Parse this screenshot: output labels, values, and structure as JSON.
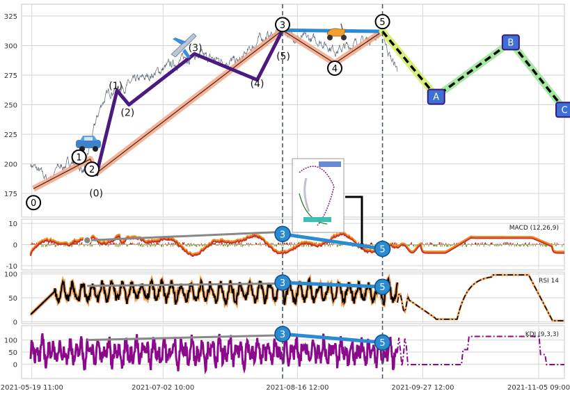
{
  "chart_data": [
    {
      "type": "line",
      "panel": "price",
      "ylim": [
        155,
        335
      ],
      "yticks": [
        175,
        200,
        225,
        250,
        275,
        300,
        325
      ],
      "grid": true,
      "x_range": [
        "2021-05-16 00:00",
        "2021-11-14 00:00"
      ],
      "xtick_labels": [
        "2021-05-19 11:00",
        "2021-07-02 10:00",
        "2021-08-16 12:00",
        "2021-09-27 12:00",
        "2021-11-05 09:00"
      ],
      "xtick_dates": [
        "2021-05-19 11:00",
        "2021-07-02 10:00",
        "2021-08-16 12:00",
        "2021-09-27 12:00",
        "2021-11-05 09:00"
      ],
      "vlines": [
        "2021-08-11 12:00",
        "2021-09-14 00:00"
      ],
      "price_path": {
        "x": [
          "2021-05-19 00:00",
          "2021-05-25 00:00",
          "2021-05-28 00:00",
          "2021-06-02 00:00",
          "2021-06-06 00:00",
          "2021-06-10 00:00",
          "2021-06-12 00:00",
          "2021-06-15 00:00",
          "2021-06-20 00:00",
          "2021-06-26 00:00",
          "2021-07-04 00:00",
          "2021-07-12 00:00",
          "2021-07-20 00:00",
          "2021-07-28 00:00",
          "2021-08-04 00:00",
          "2021-08-12 00:00",
          "2021-08-17 00:00",
          "2021-08-24 00:00",
          "2021-08-30 00:00",
          "2021-09-05 00:00",
          "2021-09-10 00:00",
          "2021-09-14 00:00",
          "2021-09-17 00:00",
          "2021-09-19 00:00"
        ],
        "y": [
          200,
          186,
          196,
          202,
          194,
          236,
          252,
          262,
          266,
          272,
          282,
          292,
          288,
          286,
          306,
          312,
          306,
          304,
          296,
          302,
          306,
          310,
          288,
          280
        ]
      },
      "elliott_primary": {
        "labels": [
          "0",
          "1",
          "2",
          "3",
          "4",
          "5"
        ],
        "x": [
          "2021-05-20 00:00",
          "2021-06-08 00:00",
          "2021-06-10 00:00",
          "2021-08-11 12:00",
          "2021-08-29 00:00",
          "2021-09-14 00:00"
        ],
        "y": [
          179,
          204,
          192,
          313,
          285,
          312
        ]
      },
      "elliott_sub": {
        "labels": [
          "(0)",
          "(1)",
          "(2)",
          "(3)",
          "(4)",
          "(5)"
        ],
        "x": [
          "2021-06-10 00:00",
          "2021-06-17 00:00",
          "2021-06-21 00:00",
          "2021-07-13 00:00",
          "2021-08-03 00:00",
          "2021-08-11 12:00"
        ],
        "y": [
          190,
          262,
          250,
          293,
          271,
          313
        ]
      },
      "correction_abc": {
        "labels": [
          "A",
          "B",
          "C"
        ],
        "x": [
          "2021-09-14 00:00",
          "2021-10-02 00:00",
          "2021-10-27 00:00",
          "2021-11-14 00:00"
        ],
        "y": [
          312,
          257,
          303,
          246
        ]
      },
      "top_line": {
        "x": [
          "2021-08-11 12:00",
          "2021-09-14 00:00"
        ],
        "y": [
          313,
          312
        ]
      }
    },
    {
      "type": "bar",
      "panel": "macd",
      "title": "MACD (12,26,9)",
      "ylim": [
        -12,
        12
      ],
      "yticks": [
        10,
        0,
        -10
      ],
      "divergence": {
        "labels": [
          "3",
          "5"
        ],
        "y": [
          5,
          -2
        ]
      },
      "gray_line": {
        "x": [
          "2021-06-07 00:00",
          "2021-08-11 12:00"
        ],
        "y": [
          2,
          6
        ]
      }
    },
    {
      "type": "line",
      "panel": "rsi",
      "title": "RSI 14",
      "ylim": [
        -4,
        104
      ],
      "yticks": [
        100,
        50,
        0
      ],
      "divergence": {
        "labels": [
          "3",
          "5"
        ],
        "y": [
          82,
          73
        ]
      },
      "gray_line": {
        "x": [
          "2021-06-07 00:00",
          "2021-08-11 12:00"
        ],
        "y": [
          75,
          80
        ]
      }
    },
    {
      "type": "line",
      "panel": "kdj",
      "title": "KDJ (9,3,3)",
      "ylim": [
        -60,
        160
      ],
      "yticks": [
        100,
        50,
        0
      ],
      "divergence": {
        "labels": [
          "3",
          "5"
        ],
        "y": [
          125,
          90
        ]
      },
      "gray_line": {
        "x": [
          "2021-06-07 00:00",
          "2021-08-11 12:00"
        ],
        "y": [
          100,
          120
        ]
      }
    }
  ],
  "style": {
    "grid_color": "#d6d6d6",
    "salmon": "#f4a582",
    "purple": "#4b1a80",
    "blue": "#2a8bd2",
    "abc_box": "#3d6fd6",
    "kdj_color": "#8b0a8b",
    "macd_red": "#c8302a",
    "macd_orange": "#f08a1a",
    "rsi_orange": "#f4a45a",
    "dash_color": "#4a5a70",
    "correction_glow": [
      "#d7f07a",
      "#a6e8a0"
    ]
  },
  "icons": [
    "car-icon",
    "airplane-icon",
    "scooter-icon",
    "embedded-thumbnail"
  ]
}
